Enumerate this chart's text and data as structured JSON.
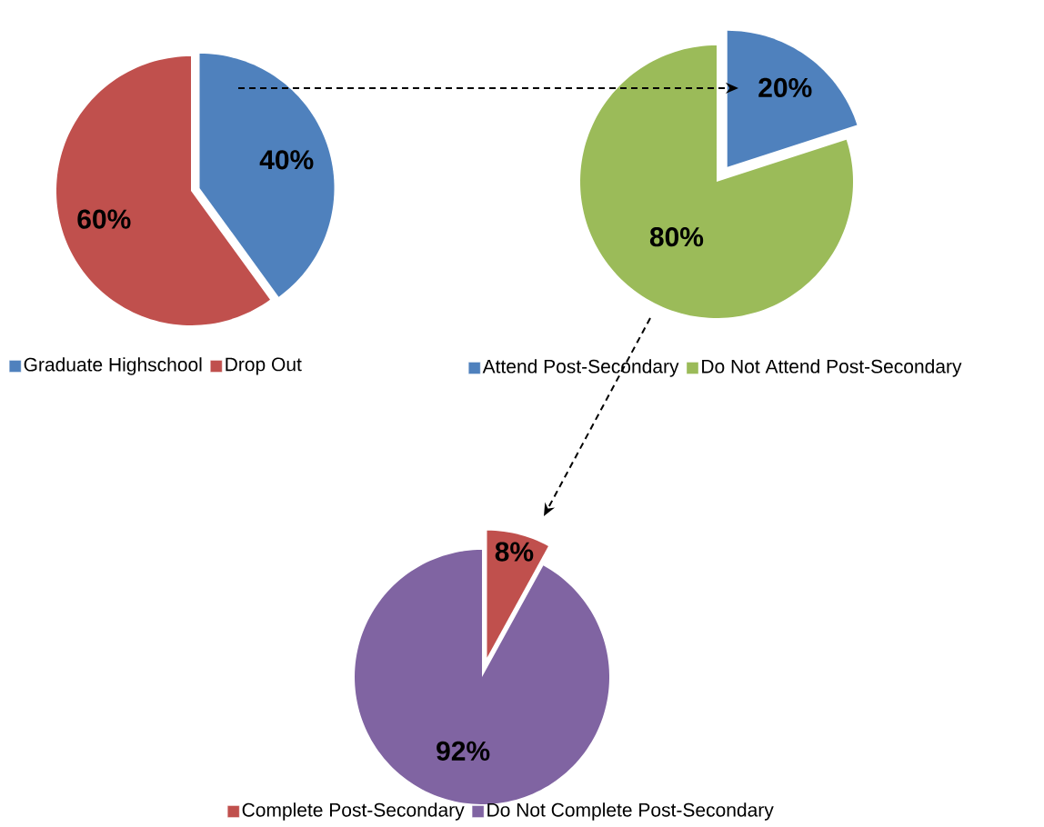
{
  "chart_data": [
    {
      "type": "pie",
      "categories": [
        "Graduate Highschool",
        "Drop Out"
      ],
      "values": [
        40,
        60
      ],
      "colors": [
        "#4f81bd",
        "#c0504d"
      ],
      "value_labels": [
        "40%",
        "60%"
      ],
      "legend": "bottom"
    },
    {
      "type": "pie",
      "categories": [
        "Attend Post-Secondary",
        "Do Not Attend Post-Secondary"
      ],
      "values": [
        20,
        80
      ],
      "colors": [
        "#4f81bd",
        "#9bbb59"
      ],
      "value_labels": [
        "20%",
        "80%"
      ],
      "legend": "bottom"
    },
    {
      "type": "pie",
      "categories": [
        "Complete Post-Secondary",
        "Do Not Complete Post-Secondary"
      ],
      "values": [
        8,
        92
      ],
      "colors": [
        "#c0504d",
        "#8064a2"
      ],
      "value_labels": [
        "8%",
        "92%"
      ],
      "legend": "bottom"
    }
  ]
}
